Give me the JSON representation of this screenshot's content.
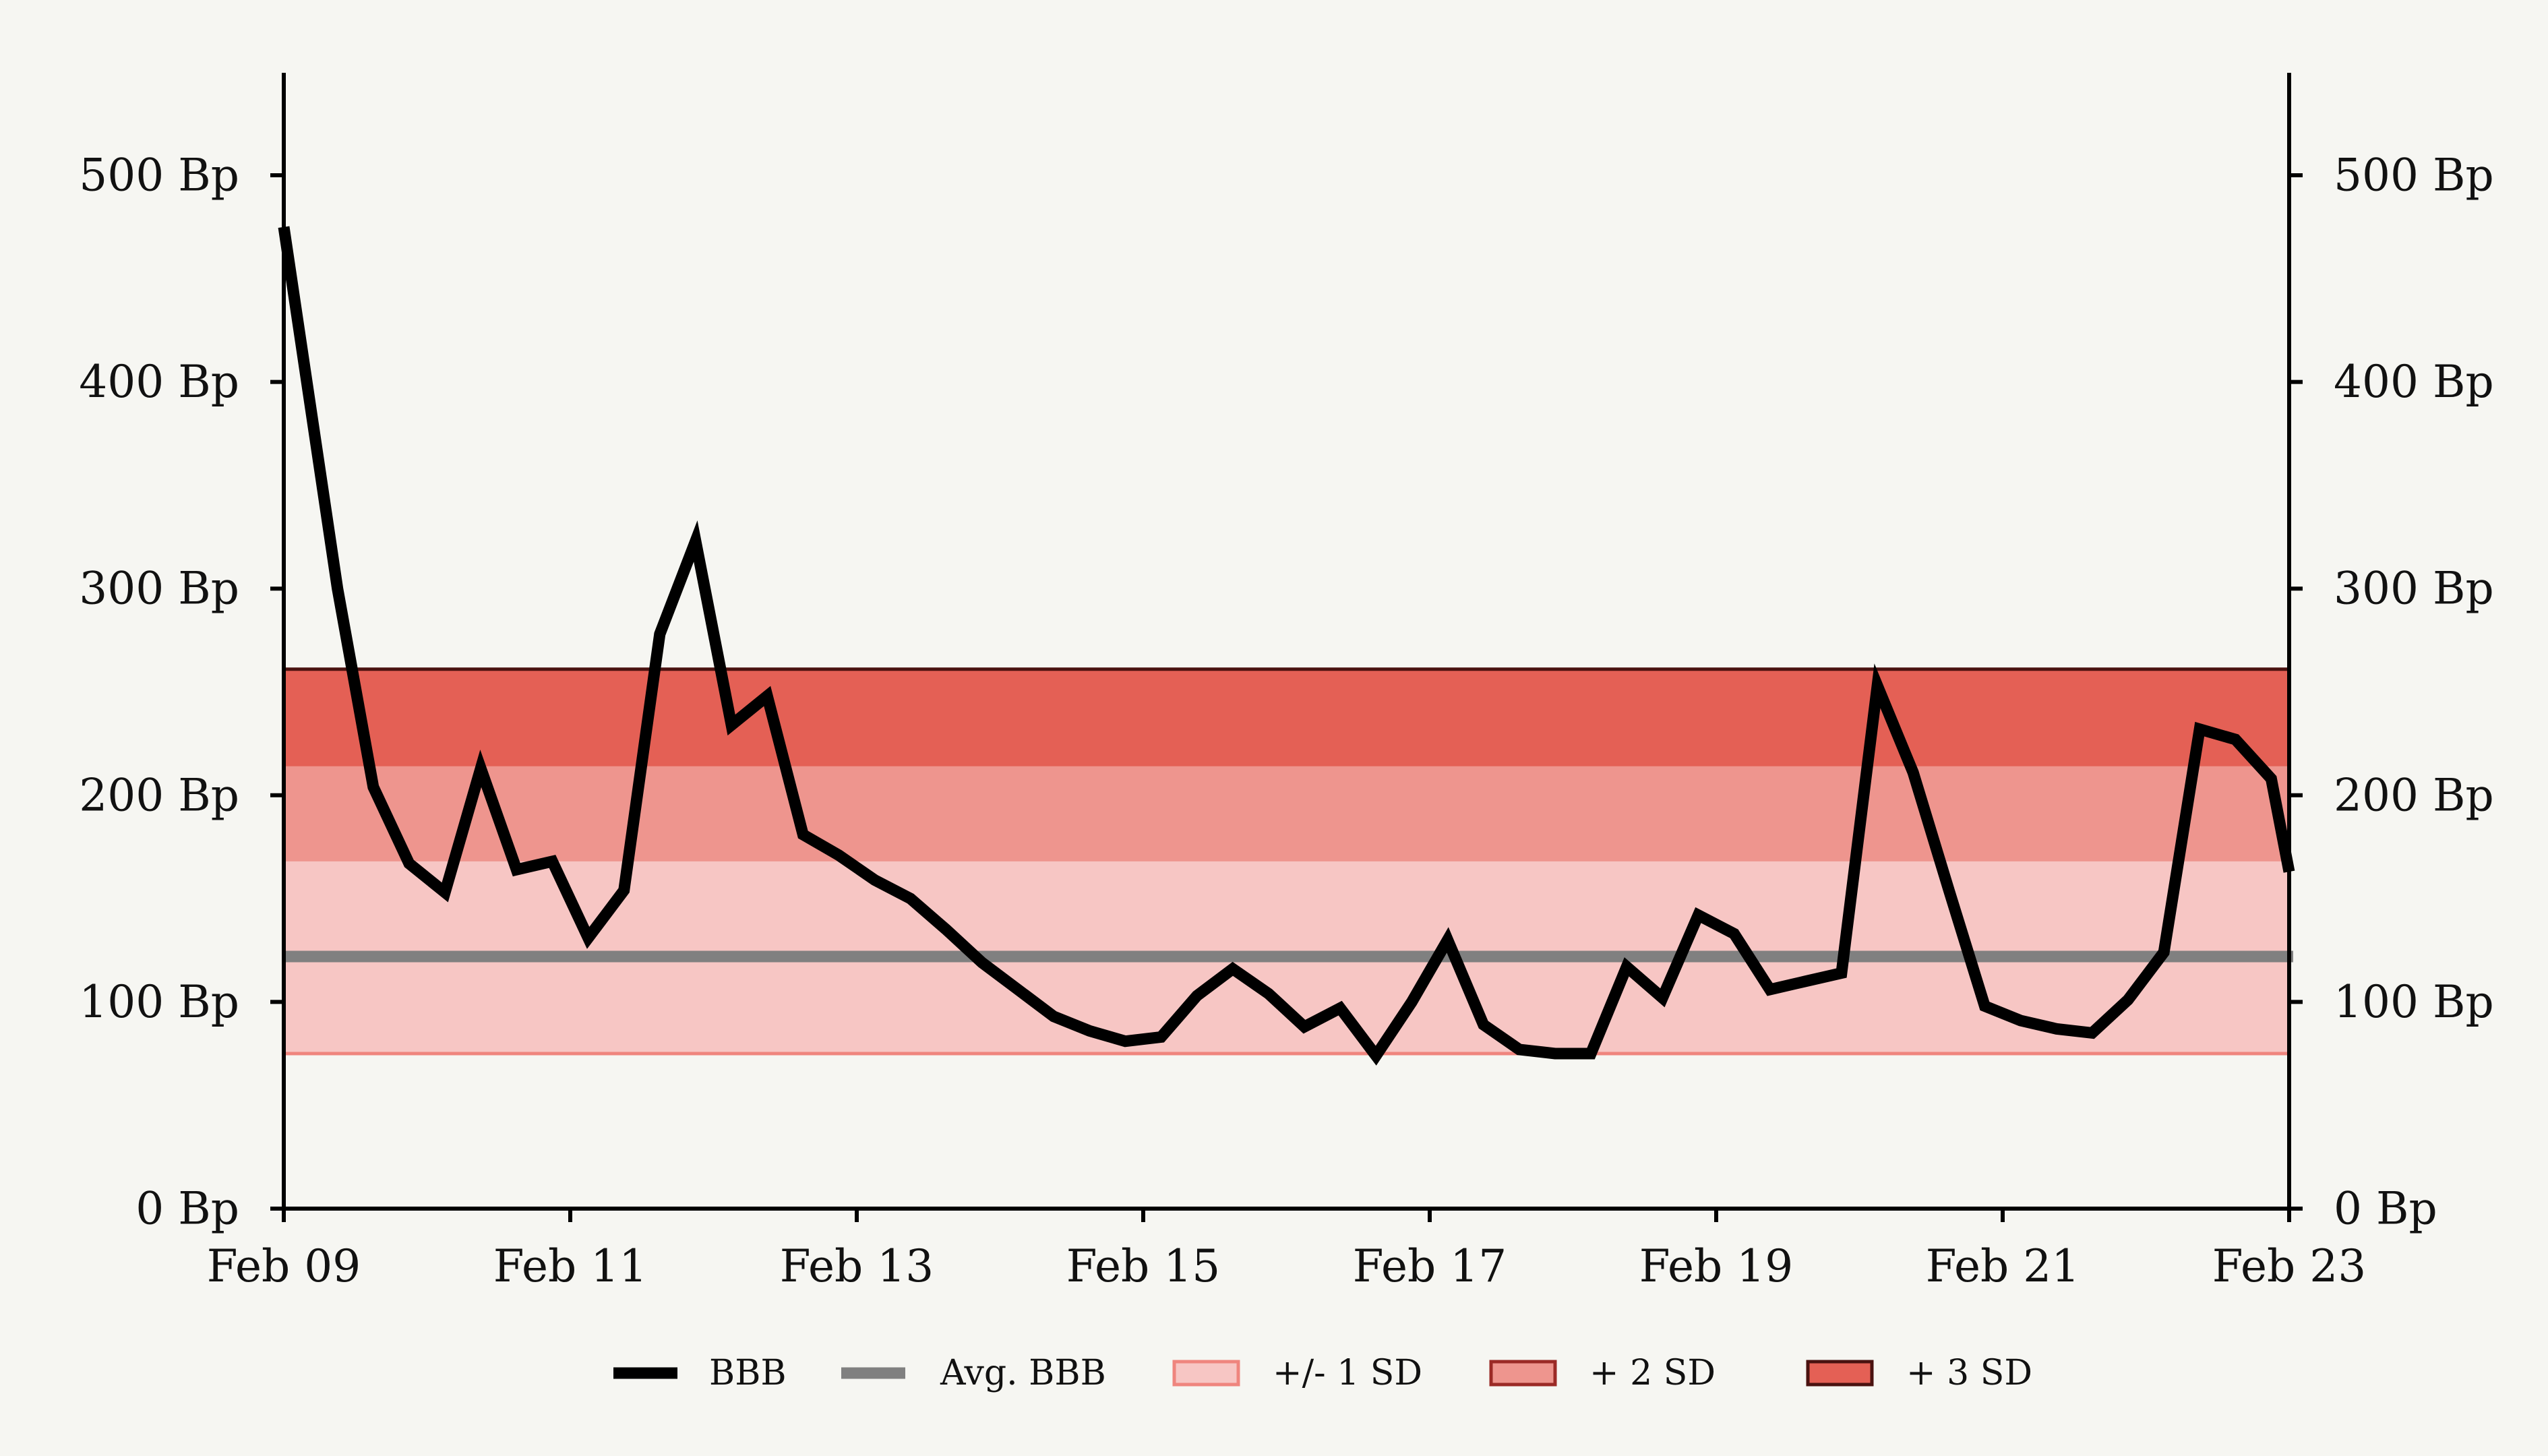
{
  "chart_data": {
    "type": "line",
    "title": "",
    "xlabel": "",
    "ylabel": "",
    "ylim": [
      0,
      550
    ],
    "xlim": [
      0,
      14
    ],
    "y_ticks": [
      0,
      100,
      200,
      300,
      400,
      500
    ],
    "y_tick_labels": [
      "0 Bp",
      "100 Bp",
      "200 Bp",
      "300 Bp",
      "400 Bp",
      "500 Bp"
    ],
    "x_ticks": [
      0,
      2,
      4,
      6,
      8,
      10,
      12,
      14
    ],
    "x_tick_labels": [
      "Feb 09",
      "Feb 11",
      "Feb 13",
      "Feb 15",
      "Feb 17",
      "Feb 19",
      "Feb 21",
      "Feb 23"
    ],
    "grid": false,
    "legend_position": "bottom-center",
    "bands": [
      {
        "name": "+/- 1 SD",
        "from": 75,
        "to": 168,
        "fill": "#f7c6c4",
        "stroke": "#ef857e"
      },
      {
        "name": "+ 2 SD",
        "from": 168,
        "to": 214,
        "fill": "#ee958e",
        "stroke": "#9b2a26"
      },
      {
        "name": "+ 3 SD",
        "from": 214,
        "to": 261,
        "fill": "#e46055",
        "stroke": "#4a1210"
      }
    ],
    "avg": {
      "name": "Avg. BBB",
      "value": 122,
      "color": "#808080"
    },
    "series": [
      {
        "name": "BBB",
        "color": "#000000",
        "x": [
          0,
          0.375,
          0.625,
          0.875,
          1.125,
          1.375,
          1.625,
          1.875,
          2.125,
          2.375,
          2.625,
          2.875,
          3.125,
          3.375,
          3.625,
          3.875,
          4.125,
          4.375,
          4.625,
          4.875,
          5.125,
          5.375,
          5.625,
          5.875,
          6.125,
          6.375,
          6.625,
          6.875,
          7.125,
          7.375,
          7.625,
          7.875,
          8.125,
          8.375,
          8.625,
          8.875,
          9.125,
          9.375,
          9.625,
          9.875,
          10.125,
          10.375,
          10.625,
          10.875,
          11.125,
          11.375,
          11.625,
          11.875,
          12.125,
          12.375,
          12.625,
          12.875,
          13.125,
          13.375,
          13.625,
          13.875,
          14
        ],
        "values": [
          475,
          300,
          204,
          167,
          153,
          213,
          164,
          168,
          131,
          154,
          278,
          323,
          234,
          248,
          181,
          171,
          159,
          150,
          135,
          119,
          106,
          93,
          86,
          81,
          83,
          103,
          116,
          104,
          88,
          97,
          74,
          100,
          130,
          89,
          77,
          75,
          75,
          117,
          102,
          142,
          133,
          106,
          110,
          114,
          253,
          211,
          154,
          98,
          91,
          87,
          85,
          101,
          124,
          232,
          227,
          208,
          163
        ]
      }
    ]
  }
}
